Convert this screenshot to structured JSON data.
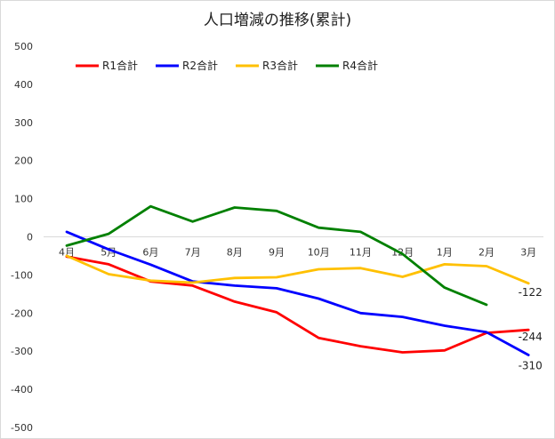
{
  "chart_data": {
    "type": "line",
    "title": "人口増減の推移(累計)",
    "categories": [
      "4月",
      "5月",
      "6月",
      "7月",
      "8月",
      "9月",
      "10月",
      "11月",
      "12月",
      "1月",
      "2月",
      "3月"
    ],
    "yticks": [
      "500",
      "400",
      "300",
      "200",
      "100",
      "0",
      "-100",
      "-200",
      "-300",
      "-400",
      "-500"
    ],
    "ylim": [
      -500,
      500
    ],
    "grid": false,
    "legend": "top-left",
    "series": [
      {
        "name": "R1合計",
        "color": "#ff0000",
        "values": [
          -52,
          -72,
          -117,
          -128,
          -170,
          -198,
          -265,
          -287,
          -303,
          -298,
          -252,
          -244
        ]
      },
      {
        "name": "R2合計",
        "color": "#0000ff",
        "values": [
          13,
          -33,
          -73,
          -117,
          -128,
          -135,
          -162,
          -200,
          -210,
          -233,
          -250,
          -310
        ]
      },
      {
        "name": "R3合計",
        "color": "#ffc000",
        "values": [
          -50,
          -98,
          -115,
          -120,
          -108,
          -106,
          -85,
          -82,
          -105,
          -72,
          -77,
          -122
        ]
      },
      {
        "name": "R4合計",
        "color": "#008000",
        "values": [
          -23,
          8,
          80,
          40,
          77,
          68,
          24,
          13,
          -45,
          -133,
          -178,
          null
        ]
      }
    ],
    "data_labels": [
      {
        "series": 2,
        "index": 11,
        "text": "-122"
      },
      {
        "series": 0,
        "index": 11,
        "text": "-244"
      },
      {
        "series": 1,
        "index": 11,
        "text": "-310"
      }
    ]
  }
}
